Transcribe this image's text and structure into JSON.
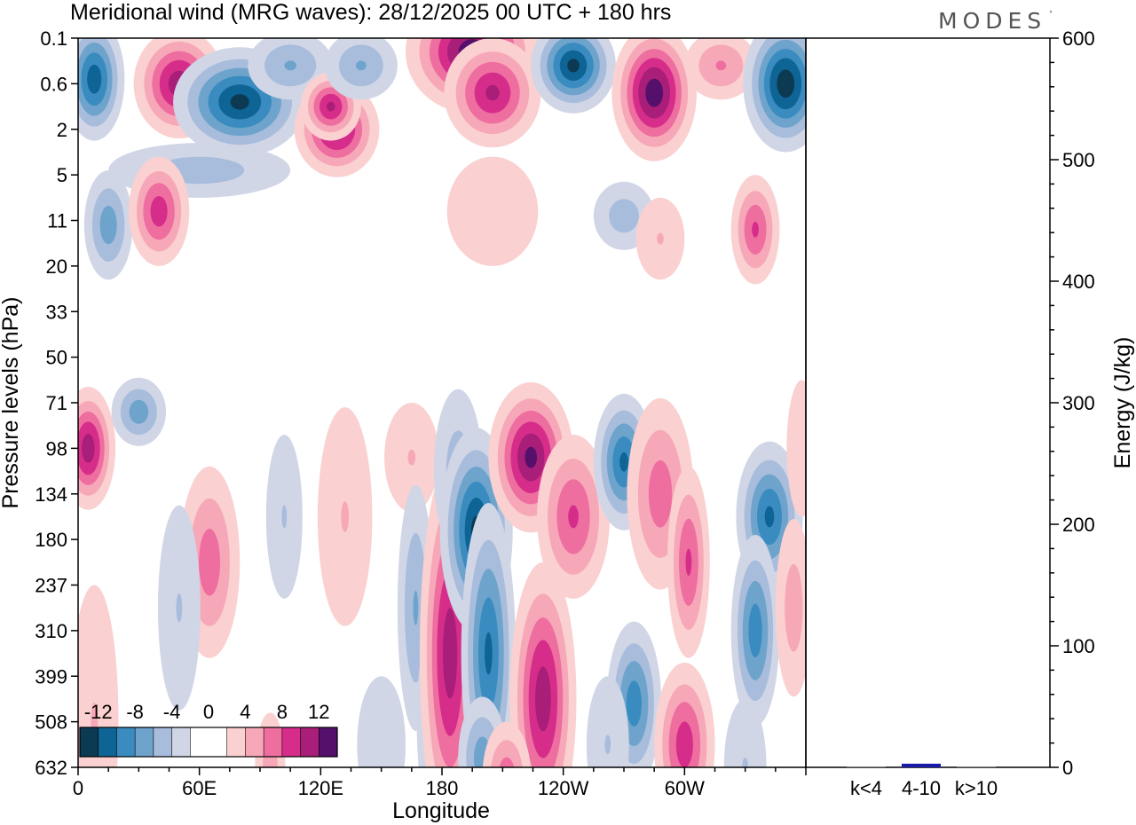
{
  "logo": "MODES",
  "logo_mark": "°",
  "chart_data": [
    {
      "type": "heatmap",
      "title": "Meridional wind (MRG waves):  28/12/2025  00 UTC  + 180 hrs",
      "xlabel": "Longitude",
      "ylabel": "Pressure levels (hPa)",
      "x_ticks": [
        {
          "lon": 0,
          "label": "0"
        },
        {
          "lon": 60,
          "label": "60E"
        },
        {
          "lon": 120,
          "label": "120E"
        },
        {
          "lon": 180,
          "label": "180"
        },
        {
          "lon": 240,
          "label": "120W"
        },
        {
          "lon": 300,
          "label": "60W"
        }
      ],
      "xlim": [
        0,
        360
      ],
      "y_levels": [
        "0.1",
        "0.6",
        "2",
        "5",
        "11",
        "20",
        "33",
        "50",
        "71",
        "98",
        "134",
        "180",
        "237",
        "310",
        "399",
        "508",
        "632"
      ],
      "colorbar": {
        "labels": [
          "-12",
          "-8",
          "-4",
          "0",
          "4",
          "8",
          "12"
        ],
        "colors": [
          "#0b3a52",
          "#0f6496",
          "#3a8cc0",
          "#6ea4cc",
          "#a8bcdc",
          "#d0d6e6",
          "#ffffff",
          "#ffffff",
          "#fad0d0",
          "#f7a8b8",
          "#ee6ea0",
          "#d62d8a",
          "#a81e78",
          "#54106a"
        ]
      },
      "blobs": [
        {
          "lon": 8,
          "lev": 0.9,
          "v": -11,
          "w": 10,
          "h": 0.9
        },
        {
          "lon": 50,
          "lev": 1.0,
          "v": 11,
          "w": 15,
          "h": 0.8
        },
        {
          "lon": 80,
          "lev": 1.4,
          "v": -12,
          "w": 22,
          "h": 0.8
        },
        {
          "lon": 105,
          "lev": 0.6,
          "v": -6,
          "w": 14,
          "h": 0.5
        },
        {
          "lon": 128,
          "lev": 2.0,
          "v": 11,
          "w": 14,
          "h": 0.7
        },
        {
          "lon": 125,
          "lev": 1.5,
          "v": 10,
          "w": 10,
          "h": 0.5
        },
        {
          "lon": 140,
          "lev": 0.6,
          "v": -6,
          "w": 12,
          "h": 0.5
        },
        {
          "lon": 195,
          "lev": 0.3,
          "v": 13,
          "w": 22,
          "h": 0.9
        },
        {
          "lon": 205,
          "lev": 1.2,
          "v": 10,
          "w": 16,
          "h": 0.8
        },
        {
          "lon": 245,
          "lev": 0.6,
          "v": -12,
          "w": 14,
          "h": 0.7
        },
        {
          "lon": 285,
          "lev": 1.2,
          "v": 13,
          "w": 14,
          "h": 1.0
        },
        {
          "lon": 318,
          "lev": 0.6,
          "v": 6,
          "w": 12,
          "h": 0.5
        },
        {
          "lon": 350,
          "lev": 1.0,
          "v": -13,
          "w": 14,
          "h": 1.0
        },
        {
          "lon": 60,
          "lev": 2.9,
          "v": -5,
          "w": 30,
          "h": 0.4
        },
        {
          "lon": 15,
          "lev": 4.1,
          "v": -7,
          "w": 8,
          "h": 0.8
        },
        {
          "lon": 40,
          "lev": 3.8,
          "v": 9,
          "w": 10,
          "h": 0.8
        },
        {
          "lon": 205,
          "lev": 3.8,
          "v": 3,
          "w": 15,
          "h": 0.8
        },
        {
          "lon": 270,
          "lev": 3.9,
          "v": -5,
          "w": 10,
          "h": 0.5
        },
        {
          "lon": 288,
          "lev": 4.4,
          "v": 4,
          "w": 8,
          "h": 0.6
        },
        {
          "lon": 335,
          "lev": 4.2,
          "v": 8,
          "w": 8,
          "h": 0.8
        },
        {
          "lon": 5,
          "lev": 9.0,
          "v": 11,
          "w": 9,
          "h": 0.9
        },
        {
          "lon": 30,
          "lev": 8.2,
          "v": -7,
          "w": 9,
          "h": 0.5
        },
        {
          "lon": 65,
          "lev": 11.5,
          "v": 7,
          "w": 10,
          "h": 1.4
        },
        {
          "lon": 50,
          "lev": 12.5,
          "v": -4,
          "w": 7,
          "h": 1.5
        },
        {
          "lon": 102,
          "lev": 10.5,
          "v": -4,
          "w": 6,
          "h": 1.2
        },
        {
          "lon": 132,
          "lev": 10.5,
          "v": 4,
          "w": 9,
          "h": 1.6
        },
        {
          "lon": 165,
          "lev": 9.2,
          "v": 4,
          "w": 9,
          "h": 0.8
        },
        {
          "lon": 167,
          "lev": 12.5,
          "v": -6,
          "w": 6,
          "h": 1.8
        },
        {
          "lon": 178,
          "lev": 15.0,
          "v": -6,
          "w": 7,
          "h": 1.6
        },
        {
          "lon": 184,
          "lev": 13.5,
          "v": 11,
          "w": 10,
          "h": 2.8
        },
        {
          "lon": 188,
          "lev": 9.5,
          "v": -5,
          "w": 8,
          "h": 1.2
        },
        {
          "lon": 197,
          "lev": 10.8,
          "v": -12,
          "w": 12,
          "h": 1.5
        },
        {
          "lon": 203,
          "lev": 13.5,
          "v": -10,
          "w": 9,
          "h": 2.2
        },
        {
          "lon": 200,
          "lev": 15.8,
          "v": -7,
          "w": 8,
          "h": 0.9
        },
        {
          "lon": 224,
          "lev": 9.2,
          "v": 12,
          "w": 14,
          "h": 1.1
        },
        {
          "lon": 245,
          "lev": 10.5,
          "v": 8,
          "w": 12,
          "h": 1.2
        },
        {
          "lon": 230,
          "lev": 14.5,
          "v": 11,
          "w": 11,
          "h": 2.0
        },
        {
          "lon": 212,
          "lev": 16.2,
          "v": 7,
          "w": 8,
          "h": 0.8
        },
        {
          "lon": 270,
          "lev": 9.3,
          "v": -10,
          "w": 10,
          "h": 1.0
        },
        {
          "lon": 275,
          "lev": 14.6,
          "v": -9,
          "w": 9,
          "h": 1.2
        },
        {
          "lon": 262,
          "lev": 15.5,
          "v": -4,
          "w": 7,
          "h": 1.0
        },
        {
          "lon": 288,
          "lev": 10.0,
          "v": 7,
          "w": 11,
          "h": 1.4
        },
        {
          "lon": 302,
          "lev": 11.5,
          "v": 8,
          "w": 7,
          "h": 1.4
        },
        {
          "lon": 300,
          "lev": 15.5,
          "v": 9,
          "w": 10,
          "h": 1.2
        },
        {
          "lon": 342,
          "lev": 10.5,
          "v": -10,
          "w": 11,
          "h": 1.1
        },
        {
          "lon": 335,
          "lev": 13.0,
          "v": -9,
          "w": 8,
          "h": 1.4
        },
        {
          "lon": 330,
          "lev": 16.0,
          "v": -4,
          "w": 7,
          "h": 1.0
        },
        {
          "lon": 354,
          "lev": 12.5,
          "v": 5,
          "w": 6,
          "h": 1.3
        },
        {
          "lon": 358,
          "lev": 9.0,
          "v": 3,
          "w": 5,
          "h": 1.0
        },
        {
          "lon": 8,
          "lev": 15.0,
          "v": 4,
          "w": 8,
          "h": 2.0
        },
        {
          "lon": 95,
          "lev": 16.0,
          "v": 5,
          "w": 5,
          "h": 0.8
        },
        {
          "lon": 150,
          "lev": 15.5,
          "v": -3,
          "w": 8,
          "h": 1.0
        }
      ]
    },
    {
      "type": "bar",
      "categories": [
        "k<4",
        "4-10",
        "k>10"
      ],
      "values": [
        0,
        3,
        0
      ],
      "ylabel": "Energy (J/kg)",
      "ylim": [
        0,
        600
      ],
      "y_ticks": [
        "0",
        "100",
        "200",
        "300",
        "400",
        "500",
        "600"
      ],
      "bar_color": "#1a1aa8"
    }
  ]
}
